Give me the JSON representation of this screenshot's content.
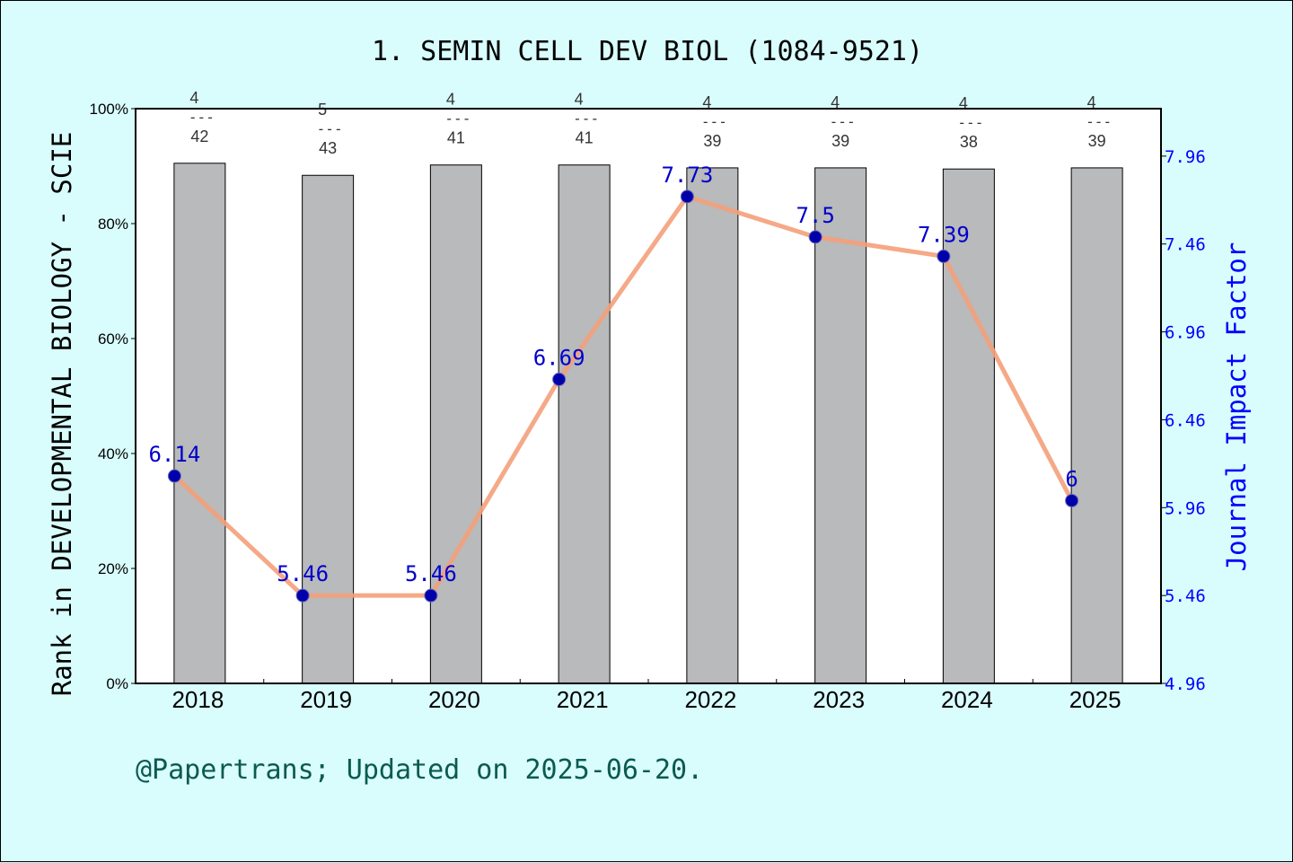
{
  "chart_data": {
    "type": "bar",
    "title": "1. SEMIN CELL DEV BIOL (1084-9521)",
    "categories": [
      "2018",
      "2019",
      "2020",
      "2021",
      "2022",
      "2023",
      "2024",
      "2025"
    ],
    "ylabel_left": "Rank in DEVELOPMENTAL BIOLOGY - SCIE",
    "ylabel_right": "Journal Impact Factor",
    "y_left_range": [
      0,
      100
    ],
    "y_left_ticks": [
      "0%",
      "20%",
      "40%",
      "60%",
      "80%",
      "100%"
    ],
    "y_right_range": [
      4.96,
      8.23
    ],
    "y_right_ticks": [
      "4.96",
      "5.46",
      "5.96",
      "6.46",
      "6.96",
      "7.46",
      "7.96"
    ],
    "series": [
      {
        "type": "bar",
        "values": [
          90.5,
          88.4,
          90.2,
          90.2,
          89.7,
          89.7,
          89.5,
          89.7
        ],
        "rank": [
          "4",
          "5",
          "4",
          "4",
          "4",
          "4",
          "4",
          "4"
        ],
        "total": [
          "42",
          "43",
          "41",
          "41",
          "39",
          "39",
          "38",
          "39"
        ],
        "color": "#b8babb"
      },
      {
        "type": "line",
        "values": [
          6.14,
          5.46,
          5.46,
          6.69,
          7.73,
          7.5,
          7.39,
          6
        ],
        "labels": [
          "6.14",
          "5.46",
          "5.46",
          "6.69",
          "7.73",
          "7.5",
          "7.39",
          "6"
        ],
        "line_color": "#f4a07a",
        "marker_color": "#0000aa"
      }
    ],
    "rank_separator": "---",
    "footer": "@Papertrans; Updated on 2025-06-20."
  }
}
